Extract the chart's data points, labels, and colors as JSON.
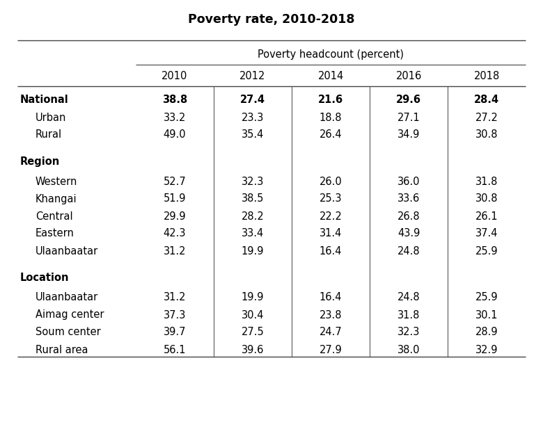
{
  "title": "Poverty rate, 2010-2018",
  "col_header_group": "Poverty headcount (percent)",
  "col_years": [
    "2010",
    "2012",
    "2014",
    "2016",
    "2018"
  ],
  "rows": [
    {
      "label": "National",
      "bold": true,
      "indent": false,
      "section_header": false,
      "values": [
        38.8,
        27.4,
        21.6,
        29.6,
        28.4
      ],
      "values_bold": true
    },
    {
      "label": "Urban",
      "bold": false,
      "indent": true,
      "section_header": false,
      "values": [
        33.2,
        23.3,
        18.8,
        27.1,
        27.2
      ],
      "values_bold": false
    },
    {
      "label": "Rural",
      "bold": false,
      "indent": true,
      "section_header": false,
      "values": [
        49.0,
        35.4,
        26.4,
        34.9,
        30.8
      ],
      "values_bold": false
    },
    {
      "label": "",
      "bold": false,
      "indent": false,
      "section_header": false,
      "spacer": true,
      "values": [
        null,
        null,
        null,
        null,
        null
      ],
      "values_bold": false
    },
    {
      "label": "Region",
      "bold": true,
      "indent": false,
      "section_header": true,
      "values": [
        null,
        null,
        null,
        null,
        null
      ],
      "values_bold": false
    },
    {
      "label": "Western",
      "bold": false,
      "indent": true,
      "section_header": false,
      "values": [
        52.7,
        32.3,
        26.0,
        36.0,
        31.8
      ],
      "values_bold": false
    },
    {
      "label": "Khangai",
      "bold": false,
      "indent": true,
      "section_header": false,
      "values": [
        51.9,
        38.5,
        25.3,
        33.6,
        30.8
      ],
      "values_bold": false
    },
    {
      "label": "Central",
      "bold": false,
      "indent": true,
      "section_header": false,
      "values": [
        29.9,
        28.2,
        22.2,
        26.8,
        26.1
      ],
      "values_bold": false
    },
    {
      "label": "Eastern",
      "bold": false,
      "indent": true,
      "section_header": false,
      "values": [
        42.3,
        33.4,
        31.4,
        43.9,
        37.4
      ],
      "values_bold": false
    },
    {
      "label": "Ulaanbaatar",
      "bold": false,
      "indent": true,
      "section_header": false,
      "values": [
        31.2,
        19.9,
        16.4,
        24.8,
        25.9
      ],
      "values_bold": false
    },
    {
      "label": "",
      "bold": false,
      "indent": false,
      "section_header": false,
      "spacer": true,
      "values": [
        null,
        null,
        null,
        null,
        null
      ],
      "values_bold": false
    },
    {
      "label": "Location",
      "bold": true,
      "indent": false,
      "section_header": true,
      "values": [
        null,
        null,
        null,
        null,
        null
      ],
      "values_bold": false
    },
    {
      "label": "Ulaanbaatar",
      "bold": false,
      "indent": true,
      "section_header": false,
      "values": [
        31.2,
        19.9,
        16.4,
        24.8,
        25.9
      ],
      "values_bold": false
    },
    {
      "label": "Aimag center",
      "bold": false,
      "indent": true,
      "section_header": false,
      "values": [
        37.3,
        30.4,
        23.8,
        31.8,
        30.1
      ],
      "values_bold": false
    },
    {
      "label": "Soum center",
      "bold": false,
      "indent": true,
      "section_header": false,
      "values": [
        39.7,
        27.5,
        24.7,
        32.3,
        28.9
      ],
      "values_bold": false
    },
    {
      "label": "Rural area",
      "bold": false,
      "indent": true,
      "section_header": false,
      "values": [
        56.1,
        39.6,
        27.9,
        38.0,
        32.9
      ],
      "values_bold": false
    }
  ],
  "bg_color": "#ffffff",
  "text_color": "#000000",
  "line_color": "#444444",
  "font_size": 10.5,
  "title_font_size": 12.5,
  "fig_width": 7.8,
  "fig_height": 6.4,
  "dpi": 100
}
